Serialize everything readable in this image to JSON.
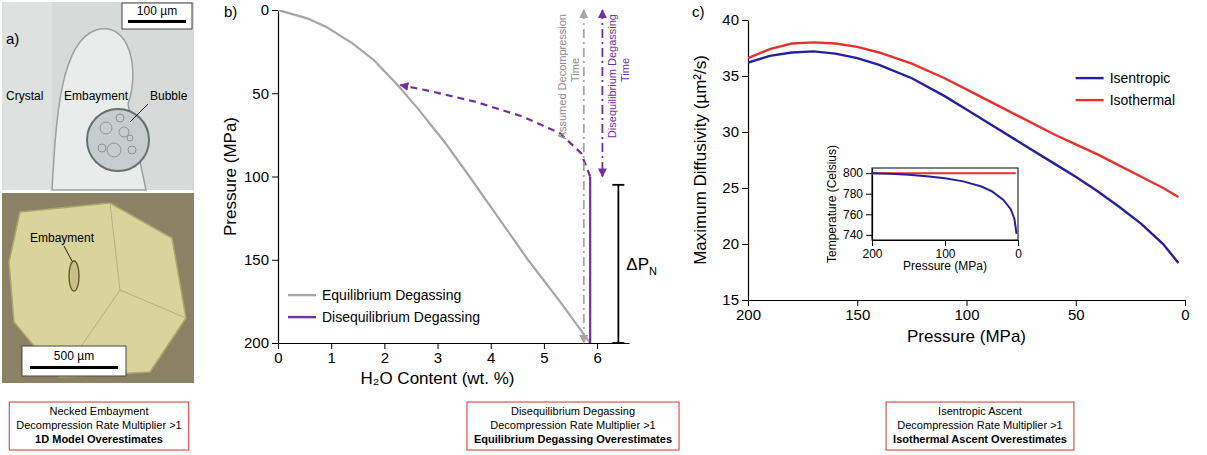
{
  "chart_data": [
    {
      "type": "image",
      "panel": "a)",
      "labels": [
        "Crystal",
        "Embayment",
        "Bubble",
        "100 µm",
        "Embayment",
        "500 µm"
      ],
      "caption": [
        "Necked Embayment",
        "Decompression Rate Multiplier >1",
        "1D Model Overestimates"
      ]
    },
    {
      "type": "line",
      "panel": "b)",
      "x_label": "H₂O Content (wt. %)",
      "y_label": "Pressure (MPa)",
      "xlim": [
        0,
        6.6
      ],
      "xticks": [
        0,
        1,
        2,
        3,
        4,
        5,
        6
      ],
      "ylim": [
        200,
        0
      ],
      "yticks": [
        0,
        50,
        100,
        150,
        200
      ],
      "legend": "lower left",
      "series": [
        {
          "name": "Equilibrium Degassing",
          "color": "#a6a6a6",
          "line_style": "solid",
          "x": [
            0,
            0.55,
            0.9,
            1.4,
            1.8,
            2.25,
            2.65,
            3.15,
            3.6,
            4.15,
            4.7,
            5.3,
            5.87
          ],
          "values": [
            0,
            5,
            10,
            20,
            30,
            45,
            60,
            80,
            100,
            125,
            150,
            175,
            200
          ]
        },
        {
          "name": "Disequilibrium Degassing",
          "color": "#7030a0",
          "line_style": "solid",
          "x": [
            5.87,
            5.87
          ],
          "values": [
            200,
            100
          ]
        },
        {
          "color": "#7030a0",
          "line_style": "dashed",
          "marker": "arrow",
          "x": [
            5.87,
            5.7,
            5.3,
            4.6,
            3.7,
            2.9,
            2.3
          ],
          "values": [
            100,
            86,
            74,
            64,
            55,
            49,
            45
          ]
        }
      ],
      "annotations": [
        {
          "text": [
            "Assumed Decompression",
            "Time"
          ],
          "color": "#a6a6a6",
          "line_style": "dashdot",
          "marker": "arrow",
          "x": 5.75,
          "y1": 0,
          "y2": 200
        },
        {
          "text": [
            "Disequilibrium Degassing",
            "Time"
          ],
          "color": "#7030a0",
          "line_style": "dashdot",
          "marker": "arrow",
          "x": 6.1,
          "y1": 0,
          "y2": 100
        },
        {
          "text": [
            "ΔP"
          ],
          "sub": "N",
          "color": "#000000",
          "line_style": "solid",
          "marker": "bracket",
          "x": 6.4,
          "y1": 105,
          "y2": 200
        }
      ],
      "caption": [
        "Disequilibrium Degassing",
        "Decompression Rate Multiplier >1",
        "Equilibrium Degassing Overestimates"
      ]
    },
    {
      "type": "line",
      "panel": "c)",
      "x_label": "Pressure (MPa)",
      "y_label": "Maximum Diffusivity (µm²/s)",
      "xlim": [
        200,
        0
      ],
      "xticks": [
        200,
        150,
        100,
        50,
        0
      ],
      "ylim": [
        15,
        40
      ],
      "yticks": [
        15,
        20,
        25,
        30,
        35,
        40
      ],
      "legend": "upper right",
      "series": [
        {
          "name": "Isentropic",
          "color": "#23229a",
          "line_style": "solid",
          "x": [
            200,
            190,
            180,
            170,
            160,
            150,
            140,
            125,
            110,
            100,
            90,
            75,
            60,
            50,
            40,
            30,
            20,
            10,
            3
          ],
          "values": [
            36.2,
            36.8,
            37.1,
            37.2,
            37.0,
            36.6,
            36.0,
            34.8,
            33.2,
            32.0,
            30.8,
            29.0,
            27.2,
            26.0,
            24.7,
            23.3,
            21.8,
            20.0,
            18.3
          ]
        },
        {
          "name": "Isothermal",
          "color": "#e6322d",
          "line_style": "solid",
          "x": [
            200,
            190,
            180,
            170,
            160,
            150,
            140,
            125,
            110,
            100,
            90,
            75,
            60,
            50,
            40,
            30,
            20,
            10,
            3
          ],
          "values": [
            36.6,
            37.4,
            37.9,
            38.0,
            37.9,
            37.6,
            37.1,
            36.1,
            34.8,
            33.8,
            32.8,
            31.3,
            29.8,
            28.9,
            28.0,
            27.0,
            26.0,
            25.0,
            24.2
          ]
        }
      ],
      "caption": [
        "Isentropic Ascent",
        "Decompression Rate Multiplier >1",
        "Isothermal Ascent Overestimates"
      ]
    },
    {
      "type": "line",
      "x_label": "Pressure (MPa)",
      "y_label": "Temperature (Celsius)",
      "xlim": [
        200,
        0
      ],
      "xticks": [
        200,
        100,
        0
      ],
      "ylim": [
        735,
        805
      ],
      "yticks": [
        740,
        760,
        780,
        800
      ],
      "series": [
        {
          "color": "#e6322d",
          "line_style": "solid",
          "x": [
            200,
            3
          ],
          "values": [
            800,
            800
          ]
        },
        {
          "color": "#23229a",
          "line_style": "solid",
          "x": [
            200,
            175,
            150,
            125,
            100,
            75,
            50,
            35,
            20,
            10,
            5,
            2
          ],
          "values": [
            800,
            799.5,
            798.5,
            797,
            795,
            792,
            787,
            782,
            774,
            765,
            756,
            741
          ]
        }
      ]
    }
  ]
}
